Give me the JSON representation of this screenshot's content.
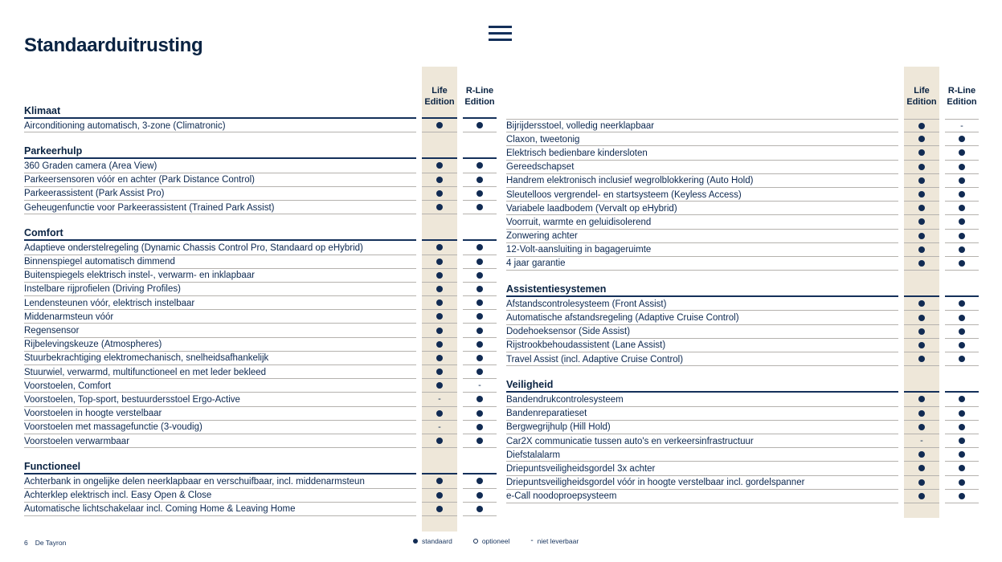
{
  "header": {
    "title": "Standaarduitrusting"
  },
  "column_headers": {
    "life": "Life\nEdition",
    "rline": "R-Line\nEdition"
  },
  "markers": {
    "standard_code": "S",
    "optional_code": "O",
    "not_available_code": "N",
    "not_available_glyph": "-",
    "dot_color": "#112b53",
    "stripe_color": "#eee7d9",
    "navy": "#0a2342"
  },
  "legend": [
    {
      "code": "S",
      "label": "standaard"
    },
    {
      "code": "O",
      "label": "optioneel"
    },
    {
      "code": "N",
      "label": "niet leverbaar"
    }
  ],
  "footer": {
    "page_number": "6",
    "publication": "De Tayron"
  },
  "tables": [
    {
      "id": "left",
      "sections": [
        {
          "title": "Klimaat",
          "rows": [
            {
              "label": "Airconditioning automatisch, 3-zone (Climatronic)",
              "life": "S",
              "rline": "S"
            }
          ]
        },
        {
          "title": "Parkeerhulp",
          "rows": [
            {
              "label": "360 Graden camera (Area View)",
              "life": "S",
              "rline": "S"
            },
            {
              "label": "Parkeersensoren vóór en achter (Park Distance Control)",
              "life": "S",
              "rline": "S"
            },
            {
              "label": "Parkeerassistent (Park Assist Pro)",
              "life": "S",
              "rline": "S"
            },
            {
              "label": "Geheugenfunctie voor Parkeerassistent (Trained Park Assist)",
              "life": "S",
              "rline": "S"
            }
          ]
        },
        {
          "title": "Comfort",
          "rows": [
            {
              "label": "Adaptieve onderstelregeling (Dynamic Chassis Control Pro, Standaard op eHybrid)",
              "life": "S",
              "rline": "S"
            },
            {
              "label": "Binnenspiegel automatisch dimmend",
              "life": "S",
              "rline": "S"
            },
            {
              "label": "Buitenspiegels elektrisch instel-, verwarm- en inklapbaar",
              "life": "S",
              "rline": "S"
            },
            {
              "label": "Instelbare rijprofielen (Driving Profiles)",
              "life": "S",
              "rline": "S"
            },
            {
              "label": "Lendensteunen vóór, elektrisch instelbaar",
              "life": "S",
              "rline": "S"
            },
            {
              "label": "Middenarmsteun vóór",
              "life": "S",
              "rline": "S"
            },
            {
              "label": "Regensensor",
              "life": "S",
              "rline": "S"
            },
            {
              "label": "Rijbelevingskeuze (Atmospheres)",
              "life": "S",
              "rline": "S"
            },
            {
              "label": "Stuurbekrachtiging elektromechanisch, snelheidsafhankelijk",
              "life": "S",
              "rline": "S"
            },
            {
              "label": "Stuurwiel, verwarmd, multifunctioneel en met leder bekleed",
              "life": "S",
              "rline": "S"
            },
            {
              "label": "Voorstoelen, Comfort",
              "life": "S",
              "rline": "N"
            },
            {
              "label": "Voorstoelen, Top-sport, bestuurdersstoel Ergo-Active",
              "life": "N",
              "rline": "S"
            },
            {
              "label": "Voorstoelen in hoogte verstelbaar",
              "life": "S",
              "rline": "S"
            },
            {
              "label": "Voorstoelen met massagefunctie (3-voudig)",
              "life": "N",
              "rline": "S"
            },
            {
              "label": "Voorstoelen verwarmbaar",
              "life": "S",
              "rline": "S"
            }
          ]
        },
        {
          "title": "Functioneel",
          "rows": [
            {
              "label": "Achterbank in ongelijke delen neerklapbaar en verschuifbaar, incl. middenarmsteun",
              "life": "S",
              "rline": "S"
            },
            {
              "label": "Achterklep elektrisch incl. Easy Open & Close",
              "life": "S",
              "rline": "S"
            },
            {
              "label": "Automatische lichtschakelaar incl. Coming Home & Leaving Home",
              "life": "S",
              "rline": "S"
            }
          ]
        }
      ]
    },
    {
      "id": "right",
      "sections": [
        {
          "title": "",
          "rows": [
            {
              "label": "Bijrijdersstoel, volledig neerklapbaar",
              "life": "S",
              "rline": "N"
            },
            {
              "label": "Claxon, tweetonig",
              "life": "S",
              "rline": "S"
            },
            {
              "label": "Elektrisch bedienbare kindersloten",
              "life": "S",
              "rline": "S"
            },
            {
              "label": "Gereedschapset",
              "life": "S",
              "rline": "S"
            },
            {
              "label": "Handrem elektronisch inclusief wegrolblokkering (Auto Hold)",
              "life": "S",
              "rline": "S"
            },
            {
              "label": "Sleutelloos vergrendel- en startsysteem (Keyless Access)",
              "life": "S",
              "rline": "S"
            },
            {
              "label": "Variabele laadbodem (Vervalt op eHybrid)",
              "life": "S",
              "rline": "S"
            },
            {
              "label": "Voorruit, warmte en geluidisolerend",
              "life": "S",
              "rline": "S"
            },
            {
              "label": "Zonwering achter",
              "life": "S",
              "rline": "S"
            },
            {
              "label": "12-Volt-aansluiting in bagageruimte",
              "life": "S",
              "rline": "S"
            },
            {
              "label": "4 jaar garantie",
              "life": "S",
              "rline": "S"
            }
          ]
        },
        {
          "title": "Assistentiesystemen",
          "rows": [
            {
              "label": "Afstandscontrolesysteem (Front Assist)",
              "life": "S",
              "rline": "S"
            },
            {
              "label": "Automatische afstandsregeling (Adaptive Cruise Control)",
              "life": "S",
              "rline": "S"
            },
            {
              "label": "Dodehoeksensor (Side Assist)",
              "life": "S",
              "rline": "S"
            },
            {
              "label": "Rijstrookbehoudassistent (Lane Assist)",
              "life": "S",
              "rline": "S"
            },
            {
              "label": "Travel Assist (incl. Adaptive Cruise Control)",
              "life": "S",
              "rline": "S"
            }
          ]
        },
        {
          "title": "Veiligheid",
          "rows": [
            {
              "label": "Bandendrukcontrolesysteem",
              "life": "S",
              "rline": "S"
            },
            {
              "label": "Bandenreparatieset",
              "life": "S",
              "rline": "S"
            },
            {
              "label": "Bergwegrijhulp (Hill Hold)",
              "life": "S",
              "rline": "S"
            },
            {
              "label": "Car2X communicatie tussen auto's en verkeersinfrastructuur",
              "life": "N",
              "rline": "S"
            },
            {
              "label": "Diefstalalarm",
              "life": "S",
              "rline": "S"
            },
            {
              "label": "Driepuntsveiligheidsgordel 3x achter",
              "life": "S",
              "rline": "S"
            },
            {
              "label": "Driepuntsveiligheidsgordel vóór in hoogte verstelbaar incl. gordelspanner",
              "life": "S",
              "rline": "S"
            },
            {
              "label": "e-Call noodoproepsysteem",
              "life": "S",
              "rline": "S"
            }
          ]
        }
      ]
    }
  ]
}
